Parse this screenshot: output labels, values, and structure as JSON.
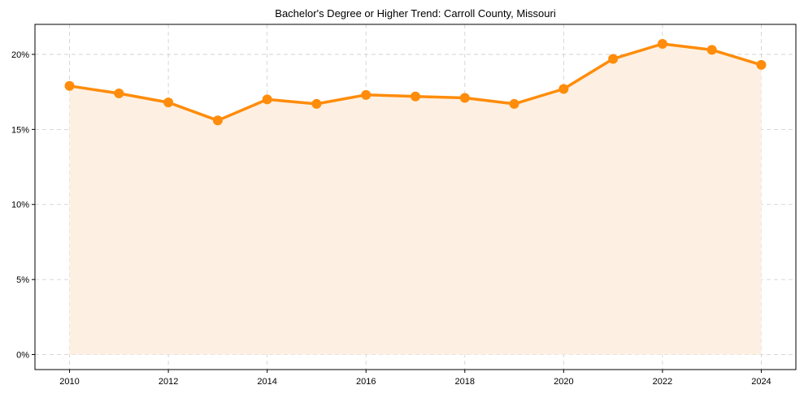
{
  "chart_data": {
    "type": "area",
    "title": "Bachelor's Degree or Higher Trend: Carroll County, Missouri",
    "xlabel": "",
    "ylabel": "",
    "x": [
      2010,
      2011,
      2012,
      2013,
      2014,
      2015,
      2016,
      2017,
      2018,
      2019,
      2020,
      2021,
      2022,
      2023,
      2024
    ],
    "series": [
      {
        "name": "Bachelor's Degree or Higher",
        "values": [
          17.9,
          17.4,
          16.8,
          15.6,
          17.0,
          16.7,
          17.3,
          17.2,
          17.1,
          16.7,
          17.7,
          19.7,
          20.7,
          20.3,
          19.3
        ],
        "unit": "%",
        "color": "#ff8c0a",
        "fill_color": "#fdf0e3",
        "marker": "circle"
      }
    ],
    "xticks": [
      2010,
      2012,
      2014,
      2016,
      2018,
      2020,
      2022,
      2024
    ],
    "yticks": [
      0,
      5,
      10,
      15,
      20
    ],
    "ytick_labels": [
      "0%",
      "5%",
      "10%",
      "15%",
      "20%"
    ],
    "ylim": [
      -1,
      22
    ],
    "xlim": [
      2009.3,
      2024.7
    ],
    "grid": true,
    "grid_style": "dashed",
    "legend": false
  }
}
